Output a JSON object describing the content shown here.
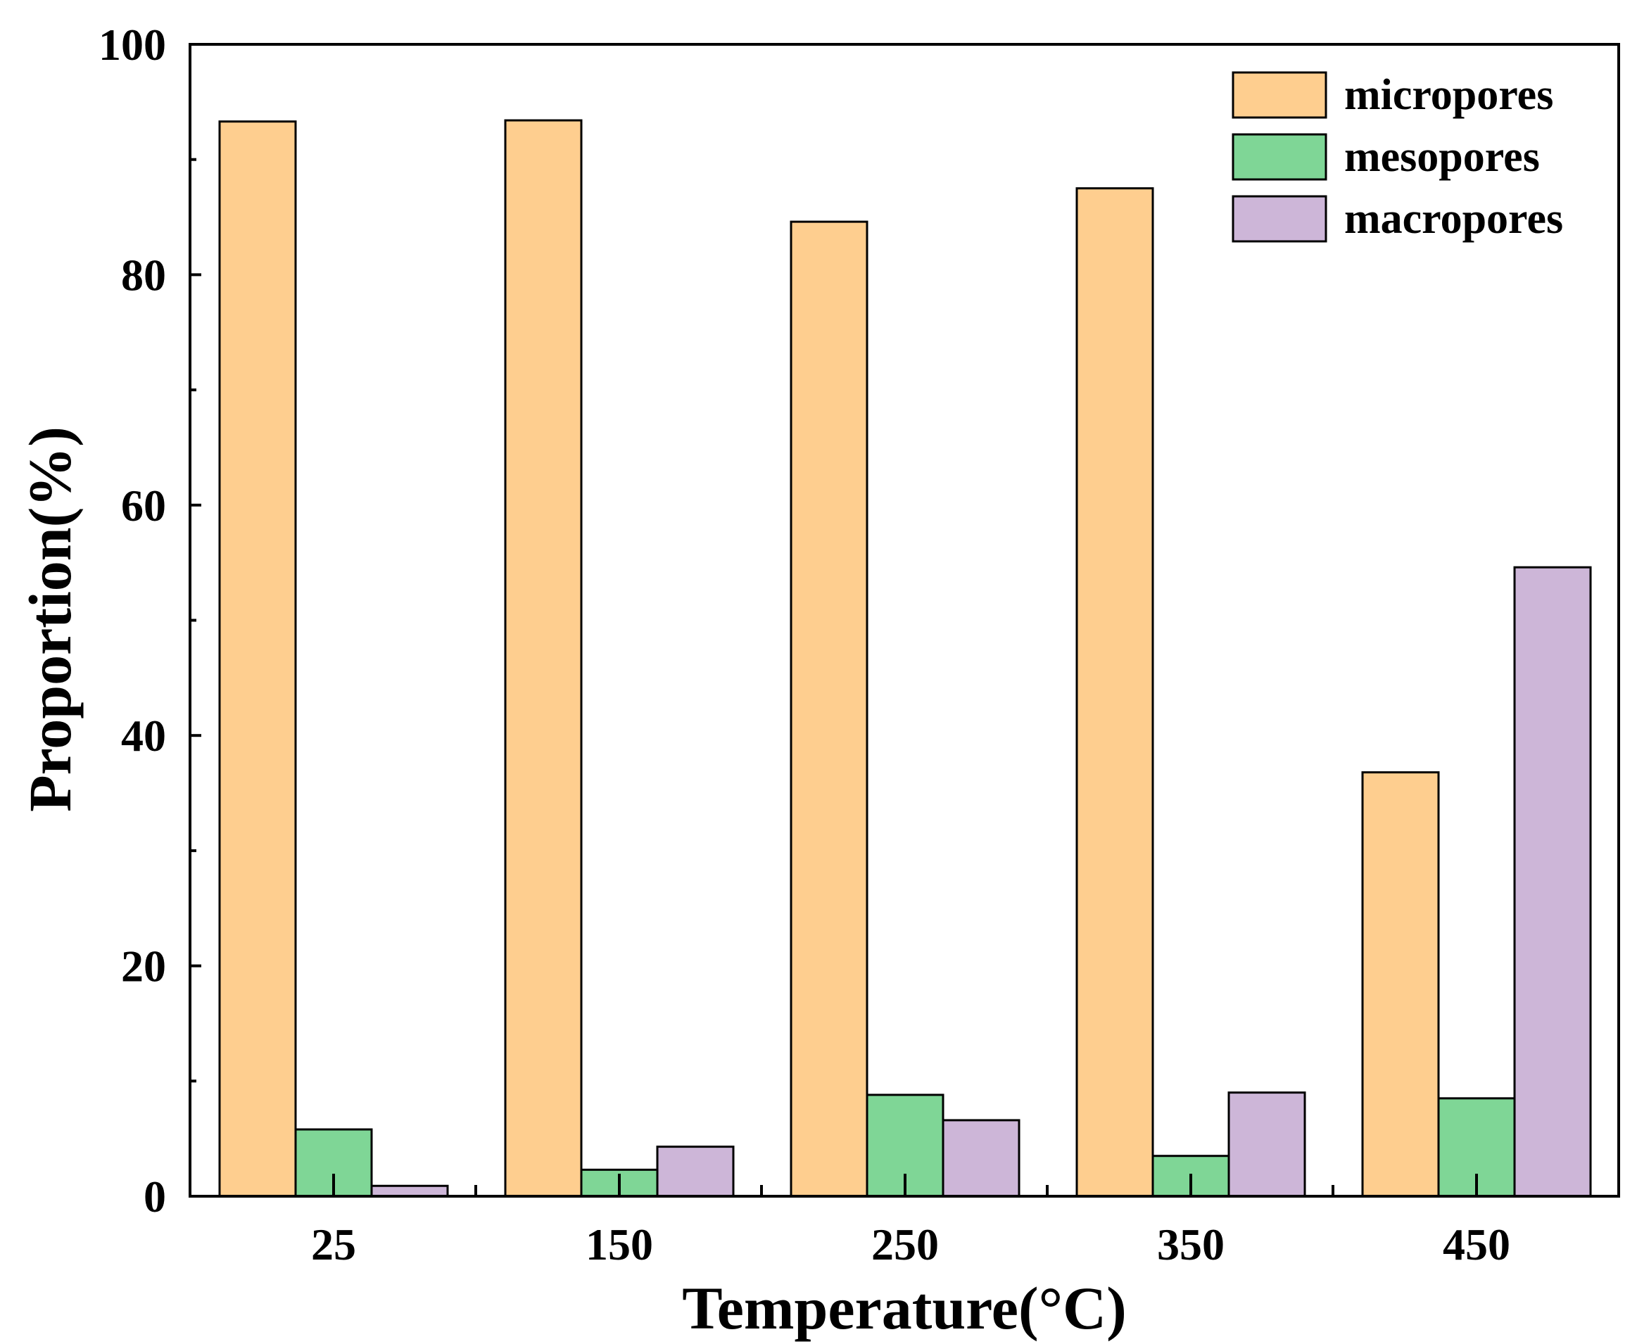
{
  "chart_data": {
    "type": "bar",
    "title": "",
    "xlabel": "Temperature(°C)",
    "ylabel": "Proportion(%)",
    "categories": [
      "25",
      "150",
      "250",
      "350",
      "450"
    ],
    "ylim": [
      0,
      100
    ],
    "yticks": [
      0,
      20,
      40,
      60,
      80,
      100
    ],
    "yticks_minor": [
      10,
      30,
      50,
      70,
      90
    ],
    "grid": false,
    "legend_position": "top-right",
    "series": [
      {
        "name": "micropores",
        "color": "#FECE8F",
        "values": [
          93.3,
          93.4,
          84.6,
          87.5,
          36.8
        ]
      },
      {
        "name": "mesopores",
        "color": "#7FD696",
        "values": [
          5.8,
          2.3,
          8.8,
          3.5,
          8.5
        ]
      },
      {
        "name": "macropores",
        "color": "#CDB6D8",
        "values": [
          0.9,
          4.3,
          6.6,
          9.0,
          54.6
        ]
      }
    ]
  }
}
